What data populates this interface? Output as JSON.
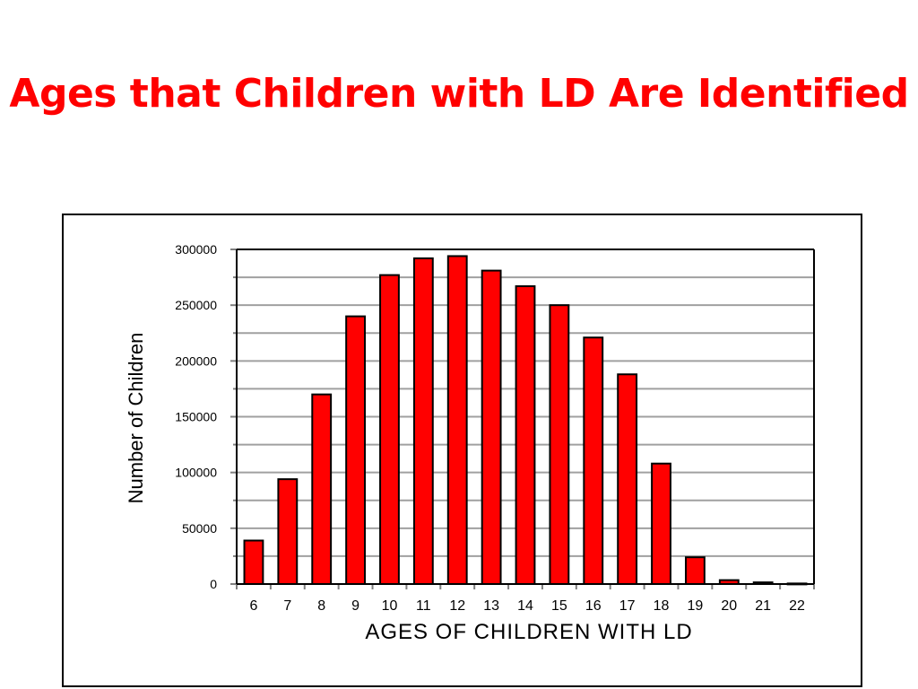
{
  "slide": {
    "title": "Ages that Children with LD Are Identified",
    "title_color": "#ff0000"
  },
  "chart_data": {
    "type": "bar",
    "title": "",
    "xlabel": "AGES OF CHILDREN WITH LD",
    "ylabel": "Number of Children",
    "categories": [
      "6",
      "7",
      "8",
      "9",
      "10",
      "11",
      "12",
      "13",
      "14",
      "15",
      "16",
      "17",
      "18",
      "19",
      "20",
      "21",
      "22"
    ],
    "values": [
      39000,
      94000,
      170000,
      240000,
      277000,
      292000,
      294000,
      281000,
      267000,
      250000,
      221000,
      188000,
      108000,
      24000,
      3500,
      1500,
      500
    ],
    "ylim": [
      0,
      300000
    ],
    "yticks": [
      0,
      50000,
      100000,
      150000,
      200000,
      250000,
      300000
    ],
    "ytick_labels": [
      "0",
      "50000",
      "100000",
      "150000",
      "200000",
      "250000",
      "300000"
    ],
    "grid": true,
    "bar_color": "#ff0000",
    "legend": "none"
  }
}
